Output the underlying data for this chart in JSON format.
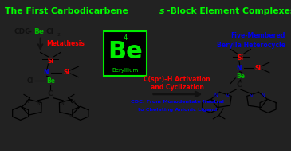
{
  "title_part1": "The First Carbodicarbene ",
  "title_italic": "s",
  "title_part2": "-Block Element Complexes",
  "title_color": "#00ff00",
  "title_bg": "#111111",
  "main_bg": "#e8e8e8",
  "outer_bg": "#222222",
  "be_element_number": "4",
  "be_element_symbol": "Be",
  "be_element_name": "Beryllium",
  "be_box_bg": "#000000",
  "be_text_color": "#00ee00",
  "red_color": "#ff0000",
  "blue_color": "#0000ee",
  "green_color": "#00bb00",
  "black_color": "#111111",
  "gray_color": "#888888"
}
